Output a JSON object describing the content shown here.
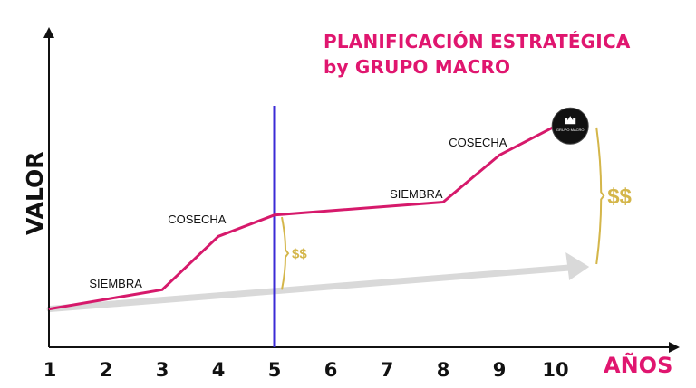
{
  "title_line1": "PLANIFICACIÓN ESTRATÉGICA",
  "title_line2": "by GRUPO MACRO",
  "colors": {
    "title": "#e0166f",
    "main_line": "#d6196b",
    "trend": "#d9d9d9",
    "marker": "#3b2bd6",
    "money": "#d4b64a",
    "axis": "#111111"
  },
  "chart_data": {
    "type": "line",
    "ylabel": "VALOR",
    "xlabel": "AÑOS",
    "x_ticks": [
      "1",
      "2",
      "3",
      "4",
      "5",
      "6",
      "7",
      "8",
      "9",
      "10"
    ],
    "xlim": [
      1,
      10.7
    ],
    "ylim": [
      0,
      100
    ],
    "series": [
      {
        "style": "main",
        "points": [
          [
            1,
            11
          ],
          [
            3,
            20
          ],
          [
            4,
            45
          ],
          [
            5,
            55
          ],
          [
            8,
            61
          ],
          [
            9,
            83
          ],
          [
            10.1,
            98
          ]
        ]
      },
      {
        "style": "trend-arrow",
        "points": [
          [
            1,
            11
          ],
          [
            10.6,
            32
          ]
        ]
      }
    ],
    "vertical_marker_x": 5,
    "annotations": [
      {
        "text": "SIEMBRA",
        "x": 1.7,
        "y": 21
      },
      {
        "text": "COSECHA",
        "x": 3.1,
        "y": 51
      },
      {
        "text": "SIEMBRA",
        "x": 7.05,
        "y": 63
      },
      {
        "text": "COSECHA",
        "x": 8.1,
        "y": 87
      }
    ],
    "gap_labels": [
      {
        "text": "$$",
        "x": 5,
        "y_from": 20,
        "y_to": 54,
        "size": "small"
      },
      {
        "text": "$$",
        "x": 10.6,
        "y_from": 32,
        "y_to": 96,
        "size": "large"
      }
    ],
    "end_badge": {
      "x": 10.1,
      "y": 98,
      "text": "GRUPO MACRO"
    }
  }
}
